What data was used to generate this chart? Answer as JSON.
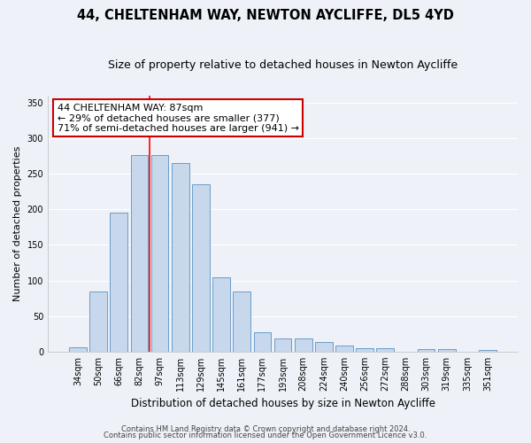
{
  "title": "44, CHELTENHAM WAY, NEWTON AYCLIFFE, DL5 4YD",
  "subtitle": "Size of property relative to detached houses in Newton Aycliffe",
  "xlabel": "Distribution of detached houses by size in Newton Aycliffe",
  "ylabel": "Number of detached properties",
  "categories": [
    "34sqm",
    "50sqm",
    "66sqm",
    "82sqm",
    "97sqm",
    "113sqm",
    "129sqm",
    "145sqm",
    "161sqm",
    "177sqm",
    "193sqm",
    "208sqm",
    "224sqm",
    "240sqm",
    "256sqm",
    "272sqm",
    "288sqm",
    "303sqm",
    "319sqm",
    "335sqm",
    "351sqm"
  ],
  "values": [
    6,
    84,
    196,
    276,
    276,
    265,
    235,
    104,
    84,
    27,
    19,
    19,
    14,
    8,
    5,
    5,
    0,
    3,
    3,
    0,
    2
  ],
  "bar_color": "#c8d8ec",
  "bar_edge_color": "#6a9cc8",
  "bar_width": 0.85,
  "vline_x": 3.5,
  "vline_color": "red",
  "ylim": [
    0,
    360
  ],
  "yticks": [
    0,
    50,
    100,
    150,
    200,
    250,
    300,
    350
  ],
  "annotation_title": "44 CHELTENHAM WAY: 87sqm",
  "annotation_line1": "← 29% of detached houses are smaller (377)",
  "annotation_line2": "71% of semi-detached houses are larger (941) →",
  "annotation_box_color": "#ffffff",
  "annotation_box_edge": "#cc0000",
  "footer1": "Contains HM Land Registry data © Crown copyright and database right 2024.",
  "footer2": "Contains public sector information licensed under the Open Government Licence v3.0.",
  "background_color": "#eef2f8",
  "grid_color": "#ffffff",
  "title_fontsize": 10.5,
  "subtitle_fontsize": 9,
  "axis_label_fontsize": 8.5,
  "tick_fontsize": 7,
  "footer_fontsize": 6,
  "annotation_fontsize": 8,
  "ylabel_fontsize": 8
}
